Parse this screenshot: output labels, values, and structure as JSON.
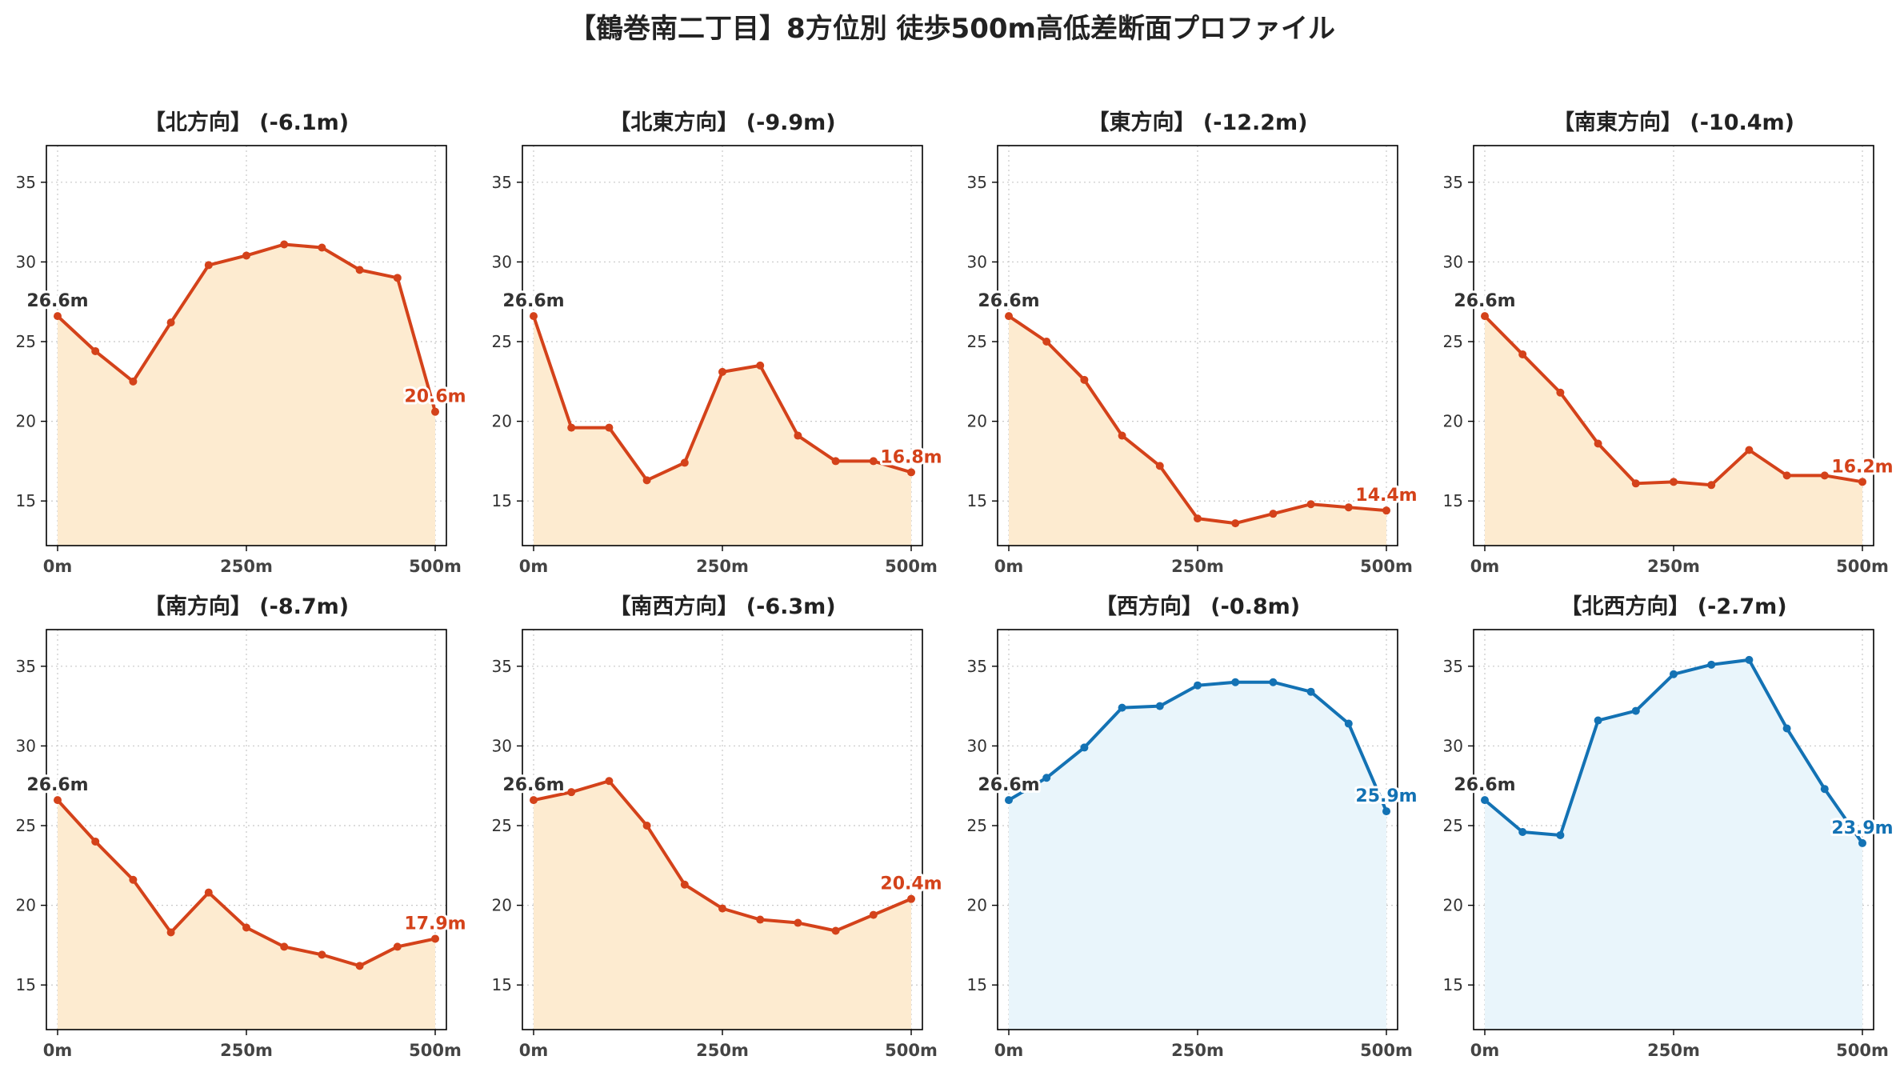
{
  "suptitle": "【鶴巻南二丁目】8方位別 徒歩500m高低差断面プロファイル",
  "colors": {
    "down_line": "#d4421a",
    "down_fill": "#fdebd0",
    "up_line": "#1372b4",
    "up_fill": "#e9f5fb",
    "start_label": "#333333",
    "grid": "#c8c8c8",
    "axis": "#000000"
  },
  "chart_data": [
    {
      "type": "area",
      "title": "【北方向】 (-6.1m)",
      "xlabel": "",
      "ylabel": "",
      "x": [
        0,
        50,
        100,
        150,
        200,
        250,
        300,
        350,
        400,
        450,
        500
      ],
      "y": [
        26.6,
        24.4,
        22.5,
        26.2,
        29.8,
        30.4,
        31.1,
        30.9,
        29.5,
        29.0,
        20.6
      ],
      "xlim": [
        0,
        500
      ],
      "ylim": [
        12.2,
        37.3
      ],
      "xtick_labels": [
        "0m",
        "250m",
        "500m"
      ],
      "ytick_labels": [
        "15",
        "20",
        "25",
        "30",
        "35"
      ],
      "start_label": "26.6m",
      "end_label": "20.6m",
      "trend": "down",
      "grid": true
    },
    {
      "type": "area",
      "title": "【北東方向】 (-9.9m)",
      "xlabel": "",
      "ylabel": "",
      "x": [
        0,
        50,
        100,
        150,
        200,
        250,
        300,
        350,
        400,
        450,
        500
      ],
      "y": [
        26.6,
        19.6,
        19.6,
        16.3,
        17.4,
        23.1,
        23.5,
        19.1,
        17.5,
        17.5,
        16.8
      ],
      "xlim": [
        0,
        500
      ],
      "ylim": [
        12.2,
        37.3
      ],
      "xtick_labels": [
        "0m",
        "250m",
        "500m"
      ],
      "ytick_labels": [
        "15",
        "20",
        "25",
        "30",
        "35"
      ],
      "start_label": "26.6m",
      "end_label": "16.8m",
      "trend": "down",
      "grid": true
    },
    {
      "type": "area",
      "title": "【東方向】 (-12.2m)",
      "xlabel": "",
      "ylabel": "",
      "x": [
        0,
        50,
        100,
        150,
        200,
        250,
        300,
        350,
        400,
        450,
        500
      ],
      "y": [
        26.6,
        25.0,
        22.6,
        19.1,
        17.2,
        13.9,
        13.6,
        14.2,
        14.8,
        14.6,
        14.4
      ],
      "xlim": [
        0,
        500
      ],
      "ylim": [
        12.2,
        37.3
      ],
      "xtick_labels": [
        "0m",
        "250m",
        "500m"
      ],
      "ytick_labels": [
        "15",
        "20",
        "25",
        "30",
        "35"
      ],
      "start_label": "26.6m",
      "end_label": "14.4m",
      "trend": "down",
      "grid": true
    },
    {
      "type": "area",
      "title": "【南東方向】 (-10.4m)",
      "xlabel": "",
      "ylabel": "",
      "x": [
        0,
        50,
        100,
        150,
        200,
        250,
        300,
        350,
        400,
        450,
        500
      ],
      "y": [
        26.6,
        24.2,
        21.8,
        18.6,
        16.1,
        16.2,
        16.0,
        18.2,
        16.6,
        16.6,
        16.2
      ],
      "xlim": [
        0,
        500
      ],
      "ylim": [
        12.2,
        37.3
      ],
      "xtick_labels": [
        "0m",
        "250m",
        "500m"
      ],
      "ytick_labels": [
        "15",
        "20",
        "25",
        "30",
        "35"
      ],
      "start_label": "26.6m",
      "end_label": "16.2m",
      "trend": "down",
      "grid": true
    },
    {
      "type": "area",
      "title": "【南方向】 (-8.7m)",
      "xlabel": "",
      "ylabel": "",
      "x": [
        0,
        50,
        100,
        150,
        200,
        250,
        300,
        350,
        400,
        450,
        500
      ],
      "y": [
        26.6,
        24.0,
        21.6,
        18.3,
        20.8,
        18.6,
        17.4,
        16.9,
        16.2,
        17.4,
        17.9
      ],
      "xlim": [
        0,
        500
      ],
      "ylim": [
        12.2,
        37.3
      ],
      "xtick_labels": [
        "0m",
        "250m",
        "500m"
      ],
      "ytick_labels": [
        "15",
        "20",
        "25",
        "30",
        "35"
      ],
      "start_label": "26.6m",
      "end_label": "17.9m",
      "trend": "down",
      "grid": true
    },
    {
      "type": "area",
      "title": "【南西方向】 (-6.3m)",
      "xlabel": "",
      "ylabel": "",
      "x": [
        0,
        50,
        100,
        150,
        200,
        250,
        300,
        350,
        400,
        450,
        500
      ],
      "y": [
        26.6,
        27.1,
        27.8,
        25.0,
        21.3,
        19.8,
        19.1,
        18.9,
        18.4,
        19.4,
        20.4
      ],
      "xlim": [
        0,
        500
      ],
      "ylim": [
        12.2,
        37.3
      ],
      "xtick_labels": [
        "0m",
        "250m",
        "500m"
      ],
      "ytick_labels": [
        "15",
        "20",
        "25",
        "30",
        "35"
      ],
      "start_label": "26.6m",
      "end_label": "20.4m",
      "trend": "down",
      "grid": true
    },
    {
      "type": "area",
      "title": "【西方向】 (-0.8m)",
      "xlabel": "",
      "ylabel": "",
      "x": [
        0,
        50,
        100,
        150,
        200,
        250,
        300,
        350,
        400,
        450,
        500
      ],
      "y": [
        26.6,
        28.0,
        29.9,
        32.4,
        32.5,
        33.8,
        34.0,
        34.0,
        33.4,
        31.4,
        25.9
      ],
      "xlim": [
        0,
        500
      ],
      "ylim": [
        12.2,
        37.3
      ],
      "xtick_labels": [
        "0m",
        "250m",
        "500m"
      ],
      "ytick_labels": [
        "15",
        "20",
        "25",
        "30",
        "35"
      ],
      "start_label": "26.6m",
      "end_label": "25.9m",
      "trend": "up",
      "grid": true
    },
    {
      "type": "area",
      "title": "【北西方向】 (-2.7m)",
      "xlabel": "",
      "ylabel": "",
      "x": [
        0,
        50,
        100,
        150,
        200,
        250,
        300,
        350,
        400,
        450,
        500
      ],
      "y": [
        26.6,
        24.6,
        24.4,
        31.6,
        32.2,
        34.5,
        35.1,
        35.4,
        31.1,
        27.3,
        23.9
      ],
      "xlim": [
        0,
        500
      ],
      "ylim": [
        12.2,
        37.3
      ],
      "xtick_labels": [
        "0m",
        "250m",
        "500m"
      ],
      "ytick_labels": [
        "15",
        "20",
        "25",
        "30",
        "35"
      ],
      "start_label": "26.6m",
      "end_label": "23.9m",
      "trend": "up",
      "grid": true
    }
  ]
}
